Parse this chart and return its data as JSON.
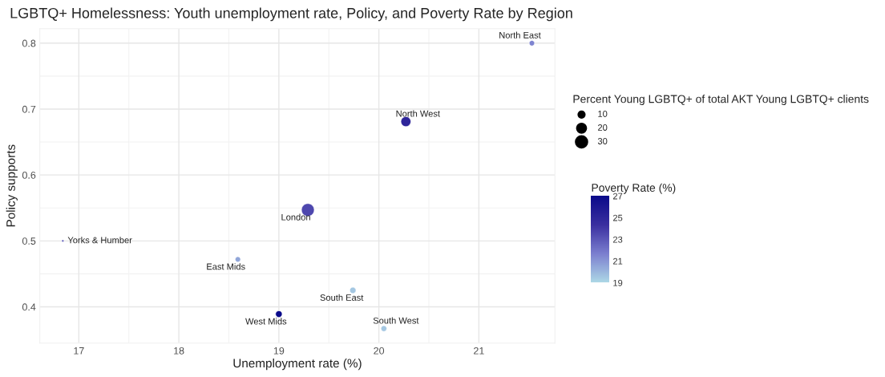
{
  "chart_data": {
    "type": "bubble",
    "title": "LGBTQ+ Homelessness: Youth unemployment rate, Policy, and Poverty Rate by Region",
    "xlabel": "Unemployment rate (%)",
    "ylabel": "Policy supports",
    "x": [
      16.84,
      18.59,
      19.0,
      19.29,
      19.74,
      20.05,
      20.27,
      21.53
    ],
    "values": [
      0.5,
      0.472,
      0.389,
      0.547,
      0.425,
      0.367,
      0.681,
      0.8
    ],
    "sizes": [
      1,
      6,
      9,
      33,
      8,
      7,
      20,
      6
    ],
    "size_legend": [
      10,
      20,
      30
    ],
    "legend_title": "Percent Young LGBTQ+ of total AKT Young LGBTQ+ clients",
    "cvalues": [
      23,
      20.5,
      27,
      23.5,
      19.5,
      19.5,
      25,
      21.5
    ],
    "clabel": "Poverty Rate (%)",
    "clim": [
      19,
      27
    ],
    "cticks": [
      19,
      21,
      23,
      25,
      27
    ],
    "xlim": [
      16.61,
      21.76
    ],
    "ylim": [
      0.345,
      0.822
    ],
    "xticks": [
      17,
      18,
      19,
      20,
      21
    ],
    "yticks": [
      0.4,
      0.5,
      0.6,
      0.7,
      0.8
    ],
    "grid": true,
    "annotations": [
      {
        "text": "Yorks & Humber",
        "x": 16.84,
        "y": 0.5
      },
      {
        "text": "East Mids",
        "x": 18.59,
        "y": 0.472
      },
      {
        "text": "West Mids",
        "x": 19.0,
        "y": 0.389
      },
      {
        "text": "London",
        "x": 19.29,
        "y": 0.547
      },
      {
        "text": "South East",
        "x": 19.74,
        "y": 0.425
      },
      {
        "text": "South West",
        "x": 20.05,
        "y": 0.367
      },
      {
        "text": "North West",
        "x": 20.27,
        "y": 0.681
      },
      {
        "text": "North East",
        "x": 21.53,
        "y": 0.8
      }
    ]
  }
}
